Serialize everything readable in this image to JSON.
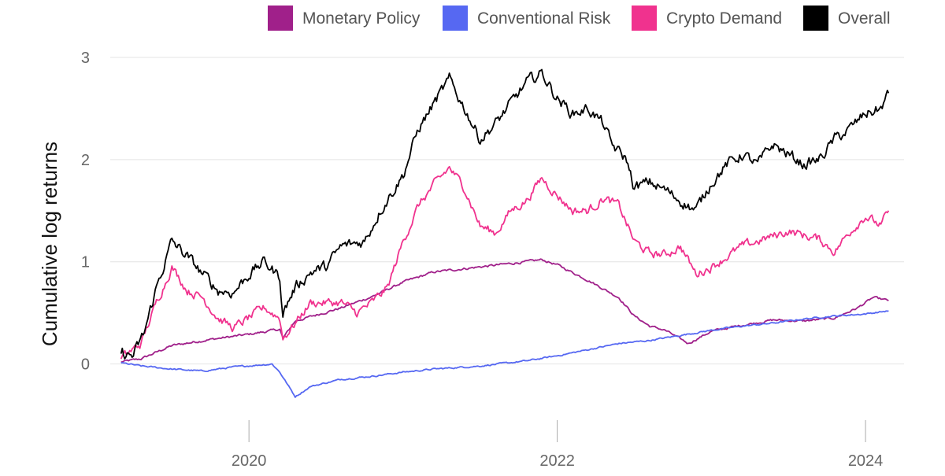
{
  "chart_data": {
    "type": "line",
    "title": "",
    "xlabel": "",
    "ylabel": "Cumulative log returns",
    "xlim": [
      2019.1,
      2024.25
    ],
    "ylim": [
      -0.75,
      3.1
    ],
    "x_ticks": [
      2020,
      2022,
      2024
    ],
    "x_tick_labels": [
      "2020",
      "2022",
      "2024"
    ],
    "y_ticks": [
      0,
      1,
      2,
      3
    ],
    "y_tick_labels": [
      "0",
      "1",
      "2",
      "3"
    ],
    "grid": "horizontal",
    "legend": "top-right",
    "series": [
      {
        "name": "Monetary Policy",
        "color": "#a0208a",
        "points": [
          [
            2019.17,
            0.02
          ],
          [
            2019.3,
            0.05
          ],
          [
            2019.5,
            0.18
          ],
          [
            2019.75,
            0.24
          ],
          [
            2020.0,
            0.29
          ],
          [
            2020.2,
            0.34
          ],
          [
            2020.22,
            0.25
          ],
          [
            2020.3,
            0.42
          ],
          [
            2020.6,
            0.55
          ],
          [
            2020.8,
            0.66
          ],
          [
            2021.0,
            0.8
          ],
          [
            2021.2,
            0.9
          ],
          [
            2021.5,
            0.95
          ],
          [
            2021.8,
            1.0
          ],
          [
            2021.9,
            1.02
          ],
          [
            2022.0,
            0.97
          ],
          [
            2022.2,
            0.82
          ],
          [
            2022.4,
            0.65
          ],
          [
            2022.5,
            0.47
          ],
          [
            2022.6,
            0.37
          ],
          [
            2022.7,
            0.33
          ],
          [
            2022.85,
            0.2
          ],
          [
            2023.0,
            0.32
          ],
          [
            2023.2,
            0.38
          ],
          [
            2023.4,
            0.43
          ],
          [
            2023.6,
            0.42
          ],
          [
            2023.8,
            0.45
          ],
          [
            2023.95,
            0.55
          ],
          [
            2024.05,
            0.65
          ],
          [
            2024.15,
            0.62
          ]
        ]
      },
      {
        "name": "Conventional Risk",
        "color": "#5668f2",
        "points": [
          [
            2019.17,
            0.01
          ],
          [
            2019.3,
            -0.02
          ],
          [
            2019.5,
            -0.05
          ],
          [
            2019.7,
            -0.07
          ],
          [
            2019.9,
            -0.03
          ],
          [
            2020.15,
            0.0
          ],
          [
            2020.2,
            -0.08
          ],
          [
            2020.3,
            -0.32
          ],
          [
            2020.4,
            -0.22
          ],
          [
            2020.6,
            -0.15
          ],
          [
            2020.8,
            -0.12
          ],
          [
            2021.0,
            -0.08
          ],
          [
            2021.2,
            -0.05
          ],
          [
            2021.5,
            -0.02
          ],
          [
            2021.8,
            0.03
          ],
          [
            2022.0,
            0.08
          ],
          [
            2022.2,
            0.14
          ],
          [
            2022.4,
            0.2
          ],
          [
            2022.6,
            0.23
          ],
          [
            2022.8,
            0.28
          ],
          [
            2023.0,
            0.33
          ],
          [
            2023.2,
            0.37
          ],
          [
            2023.4,
            0.4
          ],
          [
            2023.6,
            0.44
          ],
          [
            2023.8,
            0.47
          ],
          [
            2024.0,
            0.49
          ],
          [
            2024.15,
            0.52
          ]
        ]
      },
      {
        "name": "Crypto Demand",
        "color": "#f0328e",
        "points": [
          [
            2019.17,
            0.05
          ],
          [
            2019.3,
            0.2
          ],
          [
            2019.4,
            0.6
          ],
          [
            2019.5,
            0.95
          ],
          [
            2019.6,
            0.72
          ],
          [
            2019.7,
            0.65
          ],
          [
            2019.8,
            0.45
          ],
          [
            2019.9,
            0.35
          ],
          [
            2020.0,
            0.45
          ],
          [
            2020.1,
            0.55
          ],
          [
            2020.2,
            0.45
          ],
          [
            2020.22,
            0.25
          ],
          [
            2020.3,
            0.4
          ],
          [
            2020.4,
            0.6
          ],
          [
            2020.6,
            0.6
          ],
          [
            2020.7,
            0.5
          ],
          [
            2020.8,
            0.6
          ],
          [
            2020.9,
            0.75
          ],
          [
            2021.0,
            1.2
          ],
          [
            2021.1,
            1.55
          ],
          [
            2021.2,
            1.75
          ],
          [
            2021.3,
            1.92
          ],
          [
            2021.4,
            1.72
          ],
          [
            2021.5,
            1.35
          ],
          [
            2021.6,
            1.28
          ],
          [
            2021.7,
            1.5
          ],
          [
            2021.8,
            1.6
          ],
          [
            2021.9,
            1.82
          ],
          [
            2022.0,
            1.65
          ],
          [
            2022.1,
            1.5
          ],
          [
            2022.2,
            1.5
          ],
          [
            2022.3,
            1.62
          ],
          [
            2022.4,
            1.55
          ],
          [
            2022.5,
            1.2
          ],
          [
            2022.6,
            1.08
          ],
          [
            2022.7,
            1.07
          ],
          [
            2022.8,
            1.15
          ],
          [
            2022.9,
            0.88
          ],
          [
            2023.0,
            0.95
          ],
          [
            2023.2,
            1.15
          ],
          [
            2023.4,
            1.25
          ],
          [
            2023.5,
            1.3
          ],
          [
            2023.7,
            1.22
          ],
          [
            2023.8,
            1.1
          ],
          [
            2023.9,
            1.3
          ],
          [
            2024.0,
            1.45
          ],
          [
            2024.1,
            1.35
          ],
          [
            2024.15,
            1.5
          ]
        ]
      },
      {
        "name": "Overall",
        "color": "#000000",
        "points": [
          [
            2019.17,
            0.1
          ],
          [
            2019.25,
            0.08
          ],
          [
            2019.32,
            0.3
          ],
          [
            2019.4,
            0.75
          ],
          [
            2019.5,
            1.2
          ],
          [
            2019.6,
            1.05
          ],
          [
            2019.7,
            0.88
          ],
          [
            2019.8,
            0.72
          ],
          [
            2019.9,
            0.7
          ],
          [
            2020.0,
            0.88
          ],
          [
            2020.1,
            1.0
          ],
          [
            2020.2,
            0.85
          ],
          [
            2020.22,
            0.5
          ],
          [
            2020.3,
            0.75
          ],
          [
            2020.4,
            0.9
          ],
          [
            2020.5,
            0.95
          ],
          [
            2020.6,
            1.15
          ],
          [
            2020.75,
            1.2
          ],
          [
            2020.85,
            1.5
          ],
          [
            2021.0,
            1.85
          ],
          [
            2021.1,
            2.3
          ],
          [
            2021.2,
            2.55
          ],
          [
            2021.3,
            2.78
          ],
          [
            2021.4,
            2.5
          ],
          [
            2021.5,
            2.2
          ],
          [
            2021.6,
            2.35
          ],
          [
            2021.7,
            2.55
          ],
          [
            2021.8,
            2.75
          ],
          [
            2021.9,
            2.85
          ],
          [
            2022.0,
            2.6
          ],
          [
            2022.1,
            2.45
          ],
          [
            2022.2,
            2.5
          ],
          [
            2022.3,
            2.35
          ],
          [
            2022.35,
            2.15
          ],
          [
            2022.45,
            2.0
          ],
          [
            2022.5,
            1.72
          ],
          [
            2022.6,
            1.78
          ],
          [
            2022.7,
            1.7
          ],
          [
            2022.8,
            1.6
          ],
          [
            2022.9,
            1.5
          ],
          [
            2023.0,
            1.78
          ],
          [
            2023.1,
            1.95
          ],
          [
            2023.2,
            2.05
          ],
          [
            2023.3,
            1.95
          ],
          [
            2023.4,
            2.15
          ],
          [
            2023.5,
            2.05
          ],
          [
            2023.6,
            1.95
          ],
          [
            2023.7,
            2.0
          ],
          [
            2023.8,
            2.2
          ],
          [
            2023.9,
            2.3
          ],
          [
            2024.0,
            2.45
          ],
          [
            2024.1,
            2.5
          ],
          [
            2024.15,
            2.65
          ]
        ]
      }
    ]
  }
}
